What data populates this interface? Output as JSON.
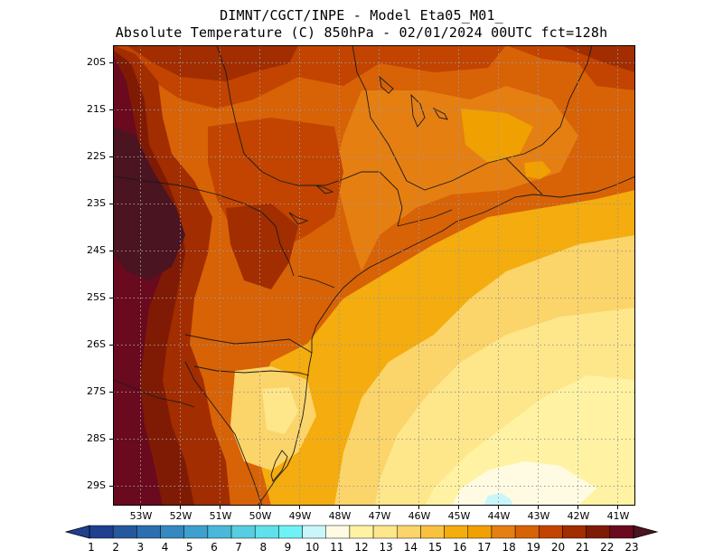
{
  "header": {
    "line1": "DIMNT/CGCT/INPE -  Model Eta05_M01_",
    "line2": "Absolute Temperature (C) 850hPa -  02/01/2024 00UTC fct=128h"
  },
  "axes": {
    "lat_labels": [
      "20S",
      "21S",
      "22S",
      "23S",
      "24S",
      "25S",
      "26S",
      "27S",
      "28S",
      "29S"
    ],
    "lon_labels": [
      "53W",
      "52W",
      "51W",
      "50W",
      "49W",
      "48W",
      "47W",
      "46W",
      "45W",
      "44W",
      "43W",
      "42W",
      "41W"
    ]
  },
  "colorbar": {
    "labels": [
      "1",
      "2",
      "3",
      "4",
      "5",
      "6",
      "7",
      "8",
      "9",
      "10",
      "11",
      "12",
      "13",
      "14",
      "15",
      "16",
      "17",
      "18",
      "19",
      "20",
      "21",
      "22",
      "23"
    ],
    "colors": [
      "#1f3f8f",
      "#26589e",
      "#2c6fb0",
      "#3588c0",
      "#3ea0cc",
      "#4ab8d8",
      "#56cde0",
      "#5fe0ea",
      "#6ef2f5",
      "#c9f6fb",
      "#fffbe3",
      "#fff3a3",
      "#fee68a",
      "#fbd46a",
      "#f8c140",
      "#f4ac0e",
      "#f0a000",
      "#e57f12",
      "#d86206",
      "#c24400",
      "#a12d00",
      "#7f1b05",
      "#6a0a1f"
    ],
    "left_arrow_color": "#1f3f8f",
    "right_arrow_color": "#4a1420"
  },
  "map": {
    "region": "Southeastern and Southern Brazil",
    "variable": "Absolute Temperature (C) 850hPa"
  }
}
